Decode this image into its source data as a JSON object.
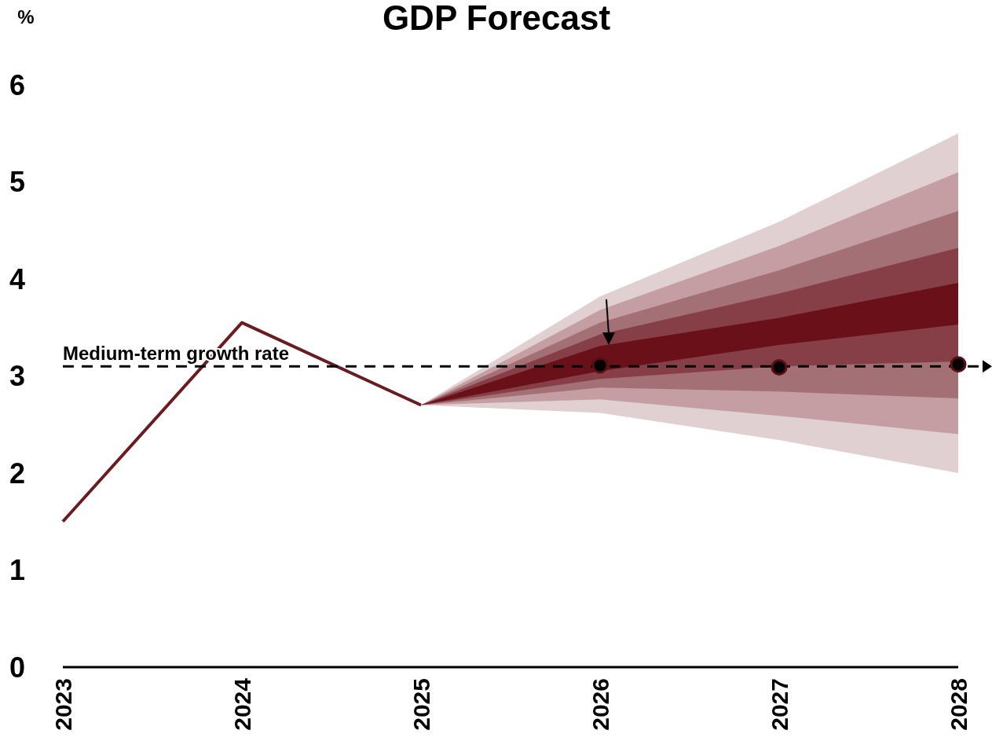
{
  "chart_data": {
    "type": "line",
    "title": "GDP Forecast",
    "ylabel": "%",
    "categories": [
      "2023",
      "2024",
      "2025",
      "2026",
      "2027",
      "2028"
    ],
    "ylim": [
      0,
      6
    ],
    "yticks": [
      0,
      1,
      2,
      3,
      4,
      5,
      6
    ],
    "series": [
      {
        "type": "area",
        "color": "#e0d0d2",
        "values": [
          null,
          null,
          null,
          null,
          null,
          null
        ],
        "lower": [
          null,
          null,
          2.7,
          2.62,
          2.34,
          2.0
        ],
        "upper": [
          null,
          null,
          2.7,
          3.82,
          4.59,
          5.5
        ]
      },
      {
        "type": "area",
        "color": "#c49ea2",
        "values": [
          null,
          null,
          null,
          null,
          null,
          null
        ],
        "lower": [
          null,
          null,
          2.7,
          2.76,
          2.59,
          2.4
        ],
        "upper": [
          null,
          null,
          2.7,
          3.68,
          4.34,
          5.1
        ]
      },
      {
        "type": "area",
        "color": "#a37075",
        "values": [
          null,
          null,
          null,
          null,
          null,
          null
        ],
        "lower": [
          null,
          null,
          2.7,
          2.88,
          2.84,
          2.77
        ],
        "upper": [
          null,
          null,
          2.7,
          3.55,
          4.09,
          4.7
        ]
      },
      {
        "type": "area",
        "color": "#863f47",
        "values": [
          null,
          null,
          null,
          null,
          null,
          null
        ],
        "lower": [
          null,
          null,
          2.7,
          2.97,
          3.1,
          3.15
        ],
        "upper": [
          null,
          null,
          2.7,
          3.43,
          3.85,
          4.32
        ]
      },
      {
        "type": "area",
        "color": "#6a1018",
        "values": [
          null,
          null,
          null,
          null,
          null,
          null
        ],
        "lower": [
          null,
          null,
          2.7,
          3.05,
          3.32,
          3.53
        ],
        "upper": [
          null,
          null,
          2.7,
          3.31,
          3.6,
          3.96
        ]
      },
      {
        "color": "#6b1a1f",
        "values": [
          1.5,
          3.55,
          2.7,
          null,
          null,
          null
        ]
      },
      {
        "type": "scatter",
        "color": "#000000",
        "marker": "circle",
        "values": [
          null,
          null,
          null,
          3.11,
          3.09,
          3.12
        ]
      }
    ],
    "ref_lines": [
      {
        "axis": "y",
        "value": 3.1,
        "label": "Medium-term growth rate",
        "line_style": "dashed",
        "color": "#000000"
      }
    ]
  }
}
